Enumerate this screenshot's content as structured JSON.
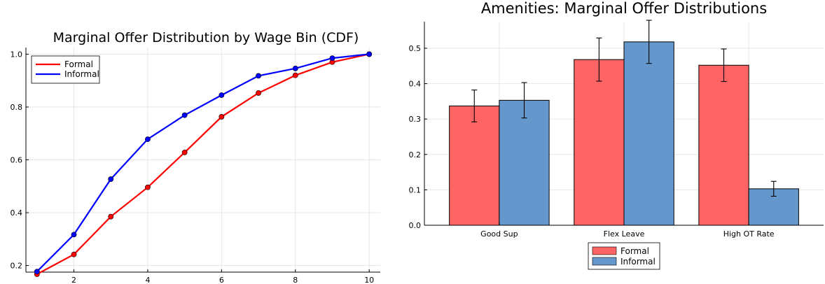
{
  "chart_data": [
    {
      "type": "line",
      "title": "Marginal Offer Distribution by Wage Bin (CDF)",
      "xlabel": "",
      "ylabel": "",
      "x": [
        1,
        2,
        3,
        4,
        5,
        6,
        7,
        8,
        9,
        10
      ],
      "xlim": [
        0.7,
        10.3
      ],
      "ylim": [
        0.175,
        1.025
      ],
      "xticks": [
        2,
        4,
        6,
        8,
        10
      ],
      "yticks": [
        0.2,
        0.4,
        0.6,
        0.8,
        1.0
      ],
      "xtick_labels": [
        "2",
        "4",
        "6",
        "8",
        "10"
      ],
      "ytick_labels": [
        "0.2",
        "0.4",
        "0.6",
        "0.8",
        "1.0"
      ],
      "grid": true,
      "legend_position": "top-left",
      "series": [
        {
          "name": "Formal",
          "color": "#ff0000",
          "values": [
            0.167,
            0.242,
            0.385,
            0.496,
            0.628,
            0.763,
            0.853,
            0.92,
            0.97,
            1.0
          ]
        },
        {
          "name": "Informal",
          "color": "#0000ff",
          "values": [
            0.177,
            0.317,
            0.527,
            0.678,
            0.769,
            0.845,
            0.918,
            0.946,
            0.985,
            1.0
          ]
        }
      ]
    },
    {
      "type": "bar",
      "title": "Amenities: Marginal Offer Distributions",
      "xlabel": "",
      "ylabel": "",
      "categories": [
        "Good Sup",
        "Flex Leave",
        "High OT Rate"
      ],
      "ylim": [
        0,
        0.575
      ],
      "yticks": [
        0,
        0.1,
        0.2,
        0.3,
        0.4,
        0.5
      ],
      "ytick_labels": [
        "0.0",
        "0.1",
        "0.2",
        "0.3",
        "0.4",
        "0.5"
      ],
      "grid": true,
      "legend_position": "bottom-center outside",
      "series": [
        {
          "name": "Formal",
          "color": "#ff6464",
          "values": [
            0.337,
            0.468,
            0.452
          ],
          "errors": [
            0.045,
            0.061,
            0.046
          ]
        },
        {
          "name": "Informal",
          "color": "#6498cc",
          "values": [
            0.353,
            0.518,
            0.103
          ],
          "errors": [
            0.05,
            0.061,
            0.021
          ]
        }
      ]
    }
  ]
}
